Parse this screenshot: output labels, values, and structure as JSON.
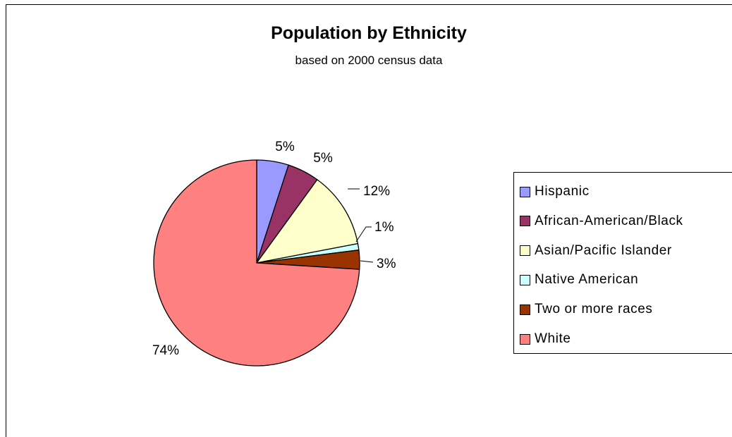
{
  "chart_data": {
    "type": "pie",
    "title": "Population by Ethnicity",
    "subtitle": "based on 2000 census data",
    "legend_position": "right",
    "slices": [
      {
        "label": "Hispanic",
        "value": 5,
        "value_label": "5%",
        "color": "#9999FF"
      },
      {
        "label": "African-American/Black",
        "value": 5,
        "value_label": "5%",
        "color": "#993366"
      },
      {
        "label": "Asian/Pacific Islander",
        "value": 12,
        "value_label": "12%",
        "color": "#FFFFCC"
      },
      {
        "label": "Native American",
        "value": 1,
        "value_label": "1%",
        "color": "#CCFFFF"
      },
      {
        "label": "Two or more races",
        "value": 3,
        "value_label": "3%",
        "color": "#993300"
      },
      {
        "label": "White",
        "value": 74,
        "value_label": "74%",
        "color": "#FF8080"
      }
    ]
  }
}
